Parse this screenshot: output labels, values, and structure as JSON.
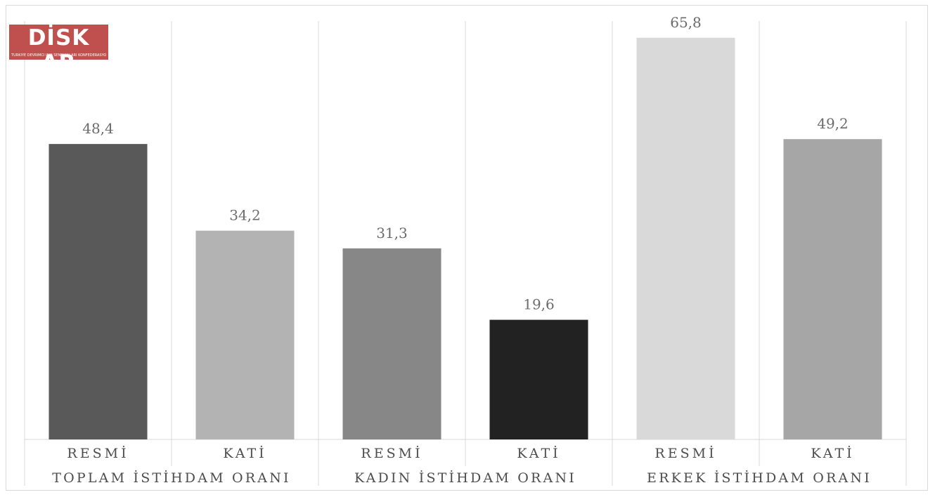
{
  "logo": {
    "name": "DİSK AR",
    "subtitle": "TÜRKİYE DEVRİMCİ İŞÇİ SENDİKALARI KONFEDERASYONU ARAŞTIRMA MERKEZİ",
    "color": "#c0504d"
  },
  "chart_data": {
    "type": "bar",
    "title": "",
    "xlabel": "",
    "ylabel": "",
    "ylim": [
      0,
      70
    ],
    "grid": "vertical-separators",
    "legend": "none",
    "groups": [
      {
        "label": "TOPLAM İSTİHDAM ORANI",
        "bars": [
          {
            "category": "RESMİ",
            "value": 48.4,
            "label": "48,4",
            "color": "#595959"
          },
          {
            "category": "KATİ",
            "value": 34.2,
            "label": "34,2",
            "color": "#b3b3b3"
          }
        ]
      },
      {
        "label": "KADIN İSTİHDAM ORANI",
        "bars": [
          {
            "category": "RESMİ",
            "value": 31.3,
            "label": "31,3",
            "color": "#878787"
          },
          {
            "category": "KATİ",
            "value": 19.6,
            "label": "19,6",
            "color": "#222222"
          }
        ]
      },
      {
        "label": "ERKEK İSTİHDAM ORANI",
        "bars": [
          {
            "category": "RESMİ",
            "value": 65.8,
            "label": "65,8",
            "color": "#d9d9d9"
          },
          {
            "category": "KATİ",
            "value": 49.2,
            "label": "49,2",
            "color": "#a6a6a6"
          }
        ]
      }
    ]
  }
}
